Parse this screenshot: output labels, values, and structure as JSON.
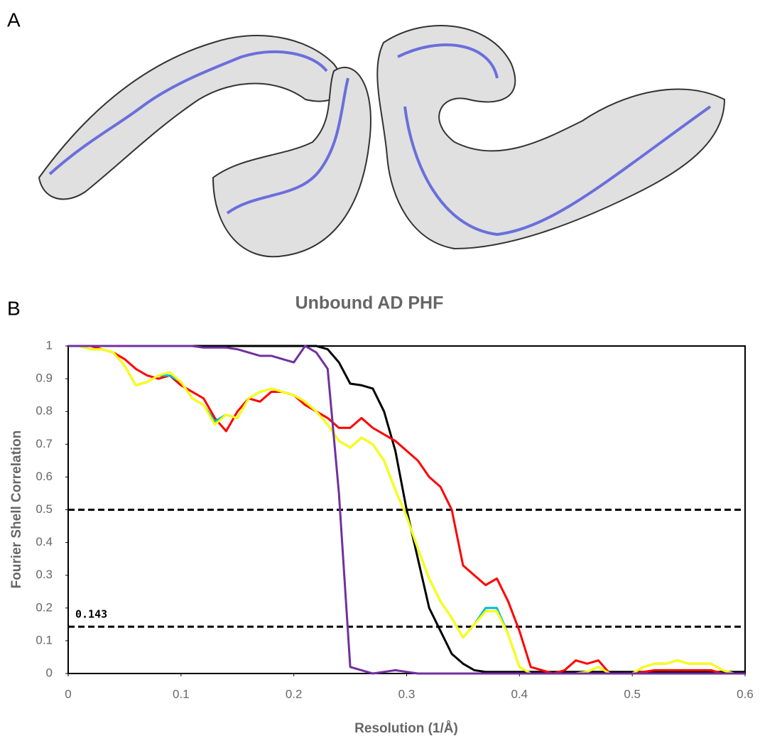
{
  "panels": {
    "a_label": "A",
    "b_label": "B"
  },
  "chart_data": {
    "type": "line",
    "title": "Unbound AD PHF",
    "x_label": "Resolution (1/Å)",
    "y_label": "Fourier Shell Correlation",
    "xlim": [
      0,
      0.6
    ],
    "ylim": [
      0,
      1
    ],
    "xticks": [
      0,
      0.1,
      0.2,
      0.3,
      0.4,
      0.5,
      0.6
    ],
    "yticks": [
      0,
      0.1,
      0.2,
      0.3,
      0.4,
      0.5,
      0.6,
      0.7,
      0.8,
      0.9,
      1
    ],
    "grid": false,
    "reference_lines": [
      {
        "value": 0.5
      },
      {
        "value": 0.143,
        "label": "0.143"
      }
    ],
    "x": [
      0,
      0.01,
      0.02,
      0.03,
      0.04,
      0.05,
      0.06,
      0.07,
      0.08,
      0.09,
      0.1,
      0.11,
      0.12,
      0.13,
      0.14,
      0.15,
      0.16,
      0.17,
      0.18,
      0.19,
      0.2,
      0.21,
      0.22,
      0.23,
      0.24,
      0.25,
      0.26,
      0.27,
      0.28,
      0.29,
      0.3,
      0.31,
      0.32,
      0.33,
      0.34,
      0.35,
      0.36,
      0.37,
      0.38,
      0.39,
      0.4,
      0.41,
      0.42,
      0.43,
      0.44,
      0.45,
      0.46,
      0.47,
      0.48,
      0.49,
      0.5,
      0.51,
      0.52,
      0.53,
      0.54,
      0.55,
      0.56,
      0.57,
      0.58,
      0.59,
      0.6
    ],
    "series": [
      {
        "color": "#000000",
        "values": [
          1,
          1,
          1,
          1,
          1,
          1,
          1,
          1,
          1,
          1,
          1,
          1,
          1,
          1,
          1,
          1,
          1,
          1,
          1,
          1,
          1,
          1,
          1,
          0.99,
          0.95,
          0.885,
          0.88,
          0.87,
          0.8,
          0.68,
          0.5,
          0.35,
          0.2,
          0.13,
          0.06,
          0.03,
          0.01,
          0.005,
          0.005,
          0.005,
          0.005,
          0.005,
          0.005,
          0.005,
          0.005,
          0.005,
          0.005,
          0.005,
          0.005,
          0.005,
          0.005,
          0.005,
          0.005,
          0.005,
          0.005,
          0.005,
          0.005,
          0.005,
          0.005,
          0.005,
          0.005
        ]
      },
      {
        "color": "#ff0000",
        "values": [
          1,
          1,
          1,
          0.99,
          0.98,
          0.96,
          0.93,
          0.91,
          0.9,
          0.91,
          0.88,
          0.86,
          0.84,
          0.78,
          0.74,
          0.8,
          0.84,
          0.83,
          0.86,
          0.86,
          0.85,
          0.82,
          0.8,
          0.78,
          0.75,
          0.75,
          0.78,
          0.75,
          0.73,
          0.71,
          0.68,
          0.65,
          0.6,
          0.57,
          0.5,
          0.33,
          0.3,
          0.27,
          0.29,
          0.22,
          0.13,
          0.02,
          0.01,
          0,
          0.01,
          0.04,
          0.03,
          0.04,
          0,
          0,
          0,
          0.005,
          0.01,
          0.01,
          0.01,
          0.01,
          0.01,
          0.01,
          0,
          0,
          0
        ]
      },
      {
        "color": "#00bcd4",
        "values": [
          1,
          1,
          0.99,
          0.99,
          0.98,
          0.94,
          0.88,
          0.89,
          0.91,
          0.91,
          0.89,
          0.84,
          0.82,
          0.77,
          0.79,
          0.78,
          0.84,
          0.86,
          0.87,
          0.86,
          0.85,
          0.83,
          0.8,
          0.76,
          0.71,
          0.69,
          0.72,
          0.7,
          0.65,
          0.56,
          0.48,
          0.38,
          0.29,
          0.22,
          0.17,
          0.11,
          0.15,
          0.2,
          0.2,
          0.12,
          0.02,
          0,
          0,
          0,
          0,
          0,
          0.005,
          0.02,
          0,
          0,
          0,
          0.02,
          0.03,
          0.03,
          0.04,
          0.03,
          0.03,
          0.03,
          0.01,
          0,
          0
        ]
      },
      {
        "color": "#ffff00",
        "values": [
          1,
          1,
          0.99,
          0.99,
          0.98,
          0.94,
          0.88,
          0.89,
          0.91,
          0.92,
          0.89,
          0.84,
          0.82,
          0.76,
          0.79,
          0.78,
          0.84,
          0.86,
          0.87,
          0.86,
          0.85,
          0.83,
          0.8,
          0.76,
          0.71,
          0.69,
          0.72,
          0.7,
          0.65,
          0.56,
          0.48,
          0.38,
          0.29,
          0.22,
          0.17,
          0.11,
          0.15,
          0.19,
          0.19,
          0.12,
          0.02,
          0,
          0,
          0,
          0,
          0,
          0.005,
          0.02,
          0,
          0,
          0,
          0.02,
          0.03,
          0.03,
          0.04,
          0.03,
          0.03,
          0.03,
          0.01,
          0,
          0
        ]
      },
      {
        "color": "#7030a0",
        "values": [
          1,
          1,
          1,
          1,
          1,
          1,
          1,
          1,
          1,
          1,
          1,
          1,
          0.995,
          0.995,
          0.995,
          0.99,
          0.98,
          0.97,
          0.97,
          0.96,
          0.95,
          1,
          0.98,
          0.93,
          0.55,
          0.02,
          0.01,
          0,
          0.005,
          0.01,
          0.005,
          0,
          0,
          0,
          0,
          0,
          0,
          0,
          0,
          0,
          0,
          0,
          0,
          0,
          0,
          0,
          0,
          0,
          0,
          0,
          0,
          0,
          0,
          0,
          0,
          0,
          0,
          0,
          0,
          0,
          0
        ]
      }
    ]
  }
}
